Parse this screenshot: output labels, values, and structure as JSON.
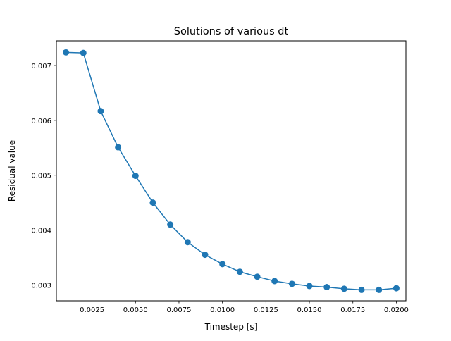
{
  "chart_data": {
    "type": "line",
    "title": "Solutions of various dt",
    "xlabel": "Timestep [s]",
    "ylabel": "Residual value",
    "xlim": [
      0.00045,
      0.02055
    ],
    "ylim": [
      0.00271,
      0.00745
    ],
    "xticks": [
      "0.0025",
      "0.0050",
      "0.0075",
      "0.0100",
      "0.0125",
      "0.0150",
      "0.0175",
      "0.0200"
    ],
    "yticks": [
      "0.003",
      "0.004",
      "0.005",
      "0.006",
      "0.007"
    ],
    "grid": false,
    "series": [
      {
        "color": "#1f77b4",
        "marker": "circle",
        "x": [
          0.001,
          0.002,
          0.003,
          0.004,
          0.005,
          0.006,
          0.007,
          0.008,
          0.009,
          0.01,
          0.011,
          0.012,
          0.013,
          0.014,
          0.015,
          0.016,
          0.017,
          0.018,
          0.019,
          0.02
        ],
        "y": [
          0.00724,
          0.00723,
          0.00617,
          0.00551,
          0.00499,
          0.0045,
          0.0041,
          0.00378,
          0.00355,
          0.00338,
          0.00324,
          0.00315,
          0.00307,
          0.00302,
          0.00298,
          0.00296,
          0.00293,
          0.00291,
          0.00291,
          0.00294
        ]
      }
    ]
  }
}
